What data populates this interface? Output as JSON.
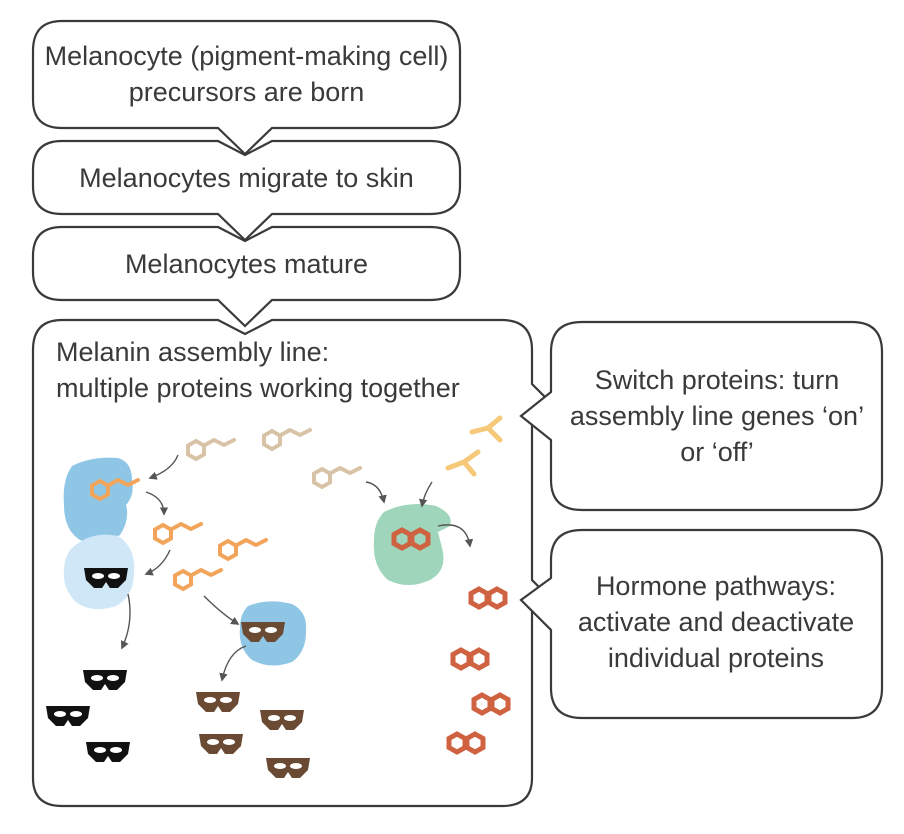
{
  "steps": {
    "step1": "Melanocyte (pigment-making cell) precursors are born",
    "step2": "Melanocytes migrate to skin",
    "step3": "Melanocytes mature",
    "assembly_title_line1": "Melanin assembly line:",
    "assembly_title_line2": "multiple proteins working together"
  },
  "callouts": {
    "switch_proteins": "Switch proteins: turn assembly line genes ‘on’ or ‘off’",
    "hormone_pathways": "Hormone pathways: activate and deactivate individual proteins"
  },
  "colors": {
    "outline": "#3a3a3a",
    "arrow": "#555555",
    "precursor_tan": "#d8c3a6",
    "intermediate_orange": "#f2a55a",
    "enzyme_blue": "#8fc6e6",
    "enzyme_light_blue": "#cfe7f6",
    "enzyme_green": "#9fd5bb",
    "eumelanin_black": "#111111",
    "brown_melanin": "#6a4a33",
    "red_melanin": "#cf6240",
    "switch_yellow": "#f6c879"
  }
}
